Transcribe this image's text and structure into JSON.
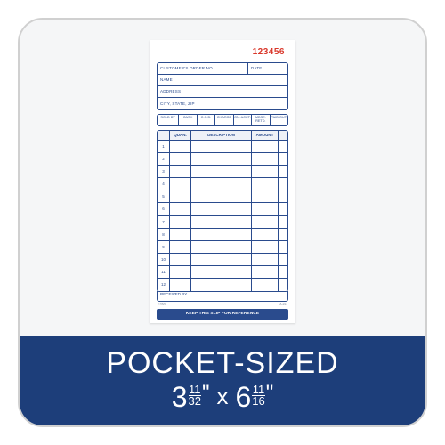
{
  "card": {
    "border_color": "#d0d0d0",
    "background": "#f5f6f7",
    "border_radius": 28
  },
  "slip": {
    "number": "123456",
    "number_color": "#d9372a",
    "line_color": "#2a4b8d",
    "info_rows": {
      "order_label": "CUSTOMER'S ORDER NO.",
      "date_label": "DATE",
      "name_label": "NAME",
      "address_label": "ADDRESS",
      "city_label": "CITY, STATE, ZIP"
    },
    "payment_cells": [
      "SOLD BY",
      "CASH",
      "C.O.D.",
      "CHARGE",
      "ON. ACCT.",
      "MDSE. RETD.",
      "PAID OUT"
    ],
    "table": {
      "headers": {
        "quan": "QUAN.",
        "description": "DESCRIPTION",
        "amount": "AMOUNT"
      },
      "row_count": 12
    },
    "received_label": "RECEIVED BY",
    "footer_text": "KEEP THIS SLIP FOR REFERENCE",
    "tiny_left": "2 PART",
    "tiny_right": "DC161"
  },
  "banner": {
    "background": "#1d3e7a",
    "title": "POCKET-SIZED",
    "dimensions": {
      "width_whole": "3",
      "width_num": "11",
      "width_den": "32",
      "height_whole": "6",
      "height_num": "11",
      "height_den": "16",
      "separator": "x"
    }
  }
}
